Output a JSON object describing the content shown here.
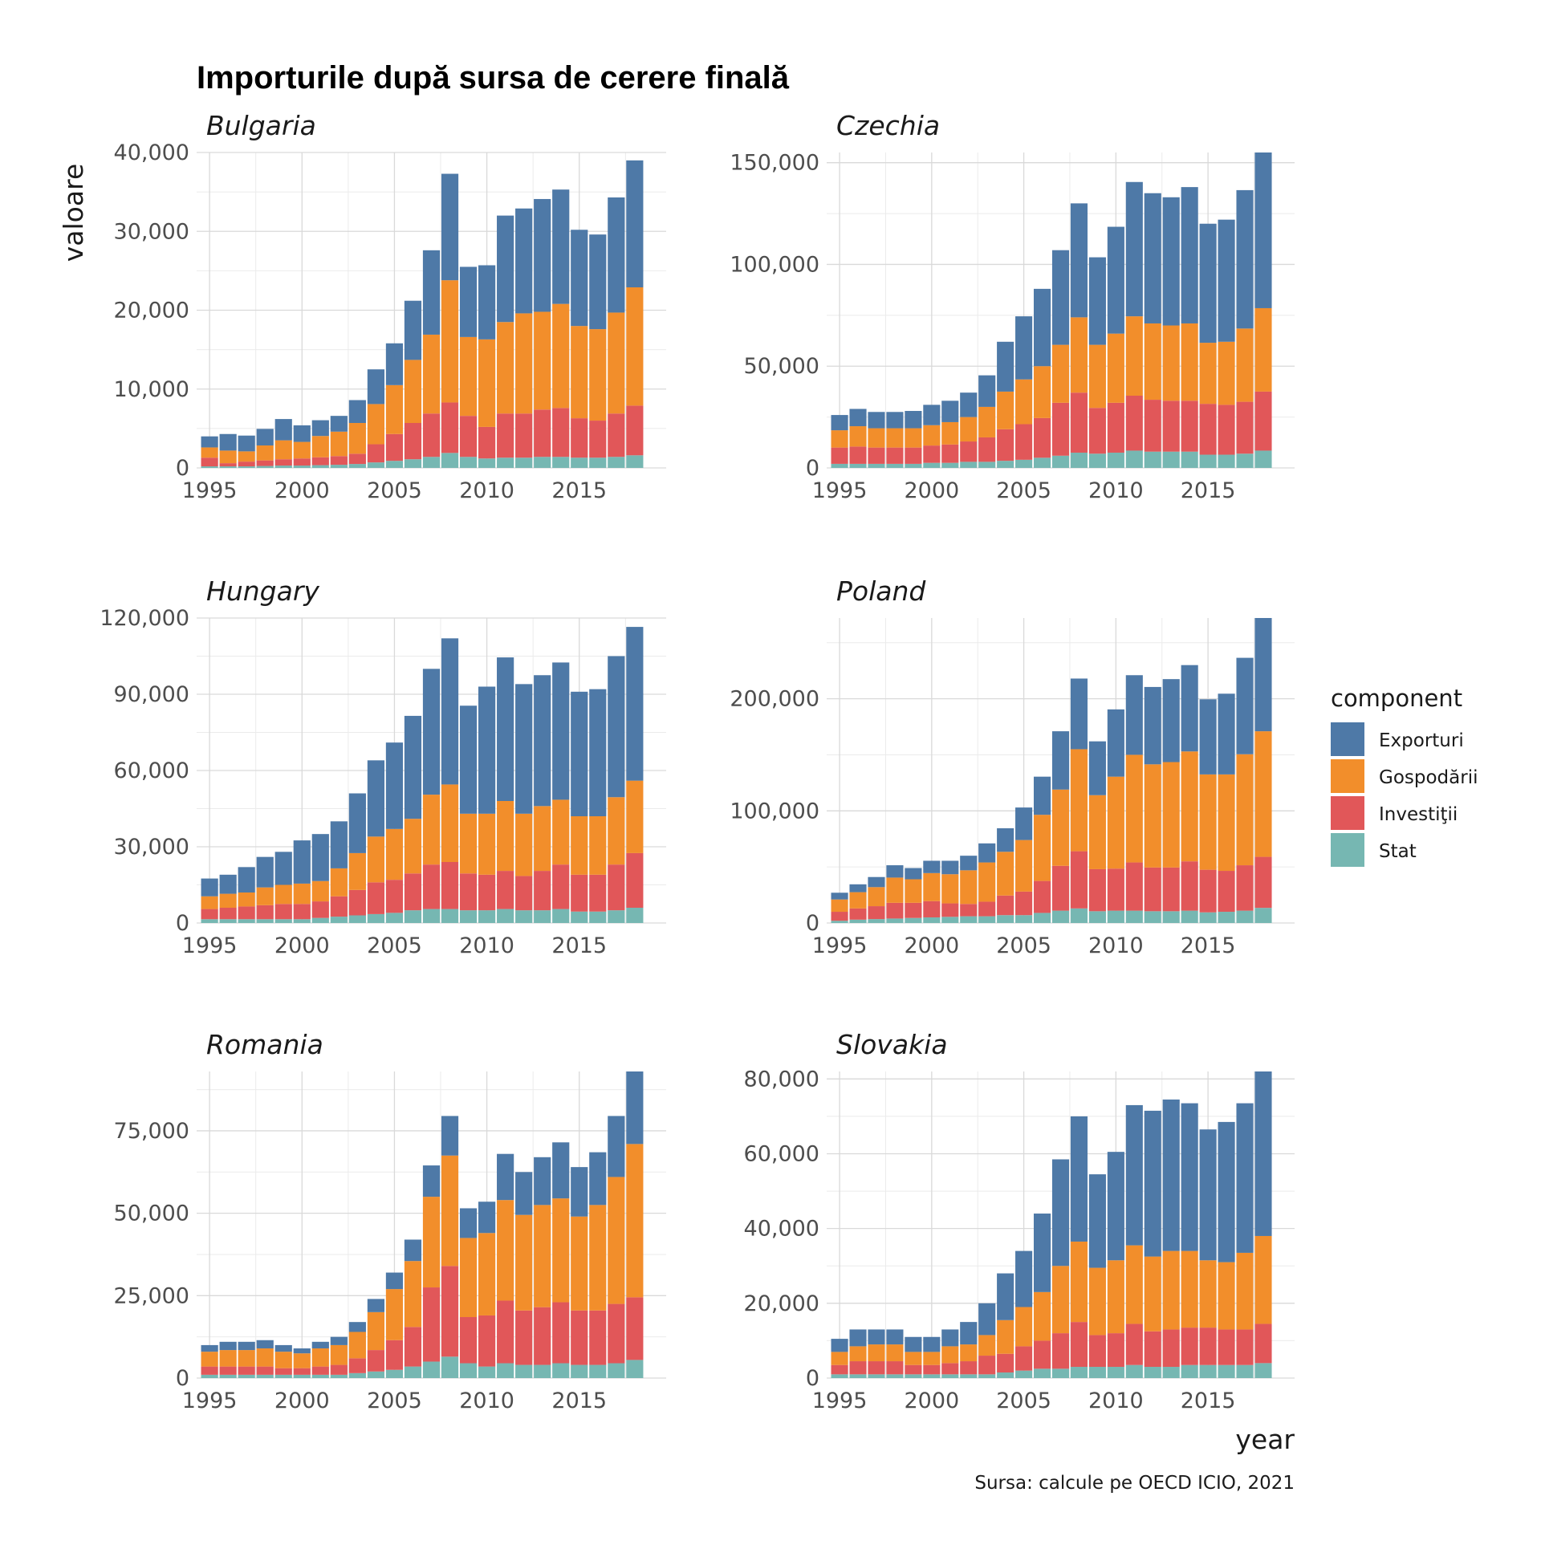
{
  "title": "Importurile după sursa de cerere finală",
  "caption": "Sursa: calcule pe OECD ICIO, 2021",
  "xlabel": "year",
  "ylabel": "valoare",
  "legend": {
    "title": "component",
    "items": [
      {
        "label": "Exporturi",
        "color": "#4E79A7"
      },
      {
        "label": "Gospodării",
        "color": "#F28E2B"
      },
      {
        "label": "Investiţii",
        "color": "#E15759"
      },
      {
        "label": "Stat",
        "color": "#76B7B2"
      }
    ]
  },
  "chart_data": {
    "type": "bar",
    "stacked": true,
    "facet_layout": "3 rows x 2 columns",
    "grid": true,
    "legend_position": "right",
    "x": [
      1995,
      1996,
      1997,
      1998,
      1999,
      2000,
      2001,
      2002,
      2003,
      2004,
      2005,
      2006,
      2007,
      2008,
      2009,
      2010,
      2011,
      2012,
      2013,
      2014,
      2015,
      2016,
      2017,
      2018
    ],
    "x_ticks": [
      "1995",
      "2000",
      "2005",
      "2010",
      "2015"
    ],
    "series_names": [
      "Exporturi",
      "Gospodării",
      "Investiţii",
      "Stat"
    ],
    "panels": [
      {
        "name": "Bulgaria",
        "ylim": [
          0,
          40000
        ],
        "y_ticks": [
          0,
          10000,
          20000,
          30000,
          40000
        ],
        "y_tick_labels": [
          "0",
          "10,000",
          "20,000",
          "30,000",
          "40,000"
        ],
        "series": [
          {
            "name": "Stat",
            "values": [
              200,
              200,
              200,
              250,
              300,
              300,
              350,
              400,
              500,
              700,
              900,
              1100,
              1400,
              1900,
              1400,
              1200,
              1300,
              1300,
              1400,
              1400,
              1300,
              1300,
              1400,
              1600
            ]
          },
          {
            "name": "Investiţii",
            "values": [
              1100,
              400,
              600,
              700,
              800,
              900,
              1000,
              1100,
              1300,
              2300,
              3400,
              4600,
              5500,
              6400,
              5200,
              4000,
              5600,
              5600,
              6000,
              6200,
              5000,
              4700,
              5500,
              6300
            ]
          },
          {
            "name": "Gospodării",
            "values": [
              1300,
              1600,
              1300,
              1900,
              2400,
              2100,
              2700,
              3100,
              3900,
              5100,
              6200,
              8000,
              10000,
              15500,
              10000,
              11100,
              11600,
              12700,
              12400,
              13200,
              11700,
              11600,
              12800,
              15000
            ]
          },
          {
            "name": "Exporturi",
            "values": [
              1400,
              2100,
              2000,
              2100,
              2700,
              2100,
              2000,
              2000,
              2900,
              4400,
              5300,
              7500,
              10700,
              13500,
              8900,
              9400,
              13500,
              13300,
              14300,
              14500,
              12200,
              12000,
              14600,
              16100
            ]
          }
        ]
      },
      {
        "name": "Czechia",
        "ylim": [
          0,
          155000
        ],
        "y_ticks": [
          0,
          50000,
          100000,
          150000
        ],
        "y_tick_labels": [
          "0",
          "50,000",
          "100,000",
          "150,000"
        ],
        "series": [
          {
            "name": "Stat",
            "values": [
              2000,
              2000,
              2000,
              2000,
              2000,
              2500,
              2500,
              3000,
              3000,
              3500,
              4000,
              5000,
              6000,
              7500,
              7000,
              7500,
              8500,
              8000,
              8000,
              8000,
              6500,
              6500,
              7000,
              8500
            ]
          },
          {
            "name": "Investiţii",
            "values": [
              8000,
              8500,
              8000,
              8000,
              8000,
              8500,
              9000,
              10000,
              12000,
              15500,
              17500,
              19500,
              26000,
              29500,
              22500,
              24500,
              27000,
              25500,
              25000,
              25000,
              25000,
              24500,
              25500,
              29000
            ]
          },
          {
            "name": "Gospodării",
            "values": [
              8500,
              10000,
              9500,
              9500,
              9500,
              10000,
              11000,
              12000,
              15000,
              18500,
              22000,
              25500,
              28500,
              37000,
              31000,
              34000,
              39000,
              37500,
              37000,
              38000,
              30000,
              31000,
              36000,
              41000
            ]
          },
          {
            "name": "Exporturi",
            "values": [
              7500,
              8500,
              8000,
              8000,
              8500,
              10000,
              10500,
              12000,
              15500,
              24500,
              31000,
              38000,
              46500,
              56000,
              43000,
              52500,
              66000,
              64000,
              63000,
              67000,
              58500,
              60000,
              68000,
              76500
            ]
          }
        ]
      },
      {
        "name": "Hungary",
        "ylim": [
          0,
          120000
        ],
        "y_ticks": [
          0,
          30000,
          60000,
          90000,
          120000
        ],
        "y_tick_labels": [
          "0",
          "30,000",
          "60,000",
          "90,000",
          "120,000"
        ],
        "series": [
          {
            "name": "Stat",
            "values": [
              1500,
              1500,
              1500,
              1500,
              1500,
              1500,
              2000,
              2500,
              3000,
              3500,
              4000,
              5000,
              5500,
              5500,
              5000,
              5000,
              5500,
              5000,
              5000,
              5500,
              4500,
              4500,
              5000,
              6000
            ]
          },
          {
            "name": "Investiţii",
            "values": [
              4000,
              4500,
              5000,
              5500,
              6000,
              6000,
              6500,
              8000,
              10000,
              12500,
              13000,
              14500,
              17500,
              18500,
              14500,
              14000,
              15000,
              13500,
              15500,
              17500,
              14500,
              14500,
              18000,
              21500
            ]
          },
          {
            "name": "Gospodării",
            "values": [
              5000,
              5500,
              5500,
              7000,
              7500,
              8000,
              8000,
              11000,
              14500,
              18000,
              20000,
              21500,
              27500,
              30500,
              23500,
              24000,
              27500,
              24500,
              25500,
              25500,
              23000,
              23000,
              26500,
              28500
            ]
          },
          {
            "name": "Exporturi",
            "values": [
              7000,
              7500,
              10000,
              12000,
              13000,
              17000,
              18500,
              18500,
              23500,
              30000,
              34000,
              40500,
              49500,
              57500,
              42500,
              50000,
              56500,
              51000,
              51500,
              54000,
              49000,
              50000,
              55500,
              60500
            ]
          }
        ]
      },
      {
        "name": "Poland",
        "ylim": [
          0,
          272000
        ],
        "y_ticks": [
          0,
          100000,
          200000
        ],
        "y_tick_labels": [
          "0",
          "100,000",
          "200,000"
        ],
        "series": [
          {
            "name": "Stat",
            "values": [
              2000,
              3000,
              3500,
              4000,
              4500,
              5000,
              5500,
              6000,
              6000,
              7000,
              7000,
              9000,
              11000,
              13000,
              10500,
              11000,
              11000,
              10500,
              10500,
              11000,
              9500,
              10000,
              11000,
              13500
            ]
          },
          {
            "name": "Investiţii",
            "values": [
              8000,
              10000,
              11500,
              14000,
              13500,
              14500,
              12000,
              11000,
              13000,
              17500,
              21000,
              28500,
              40000,
              51000,
              37500,
              37500,
              43000,
              39000,
              39000,
              44000,
              38000,
              36500,
              40500,
              45500
            ]
          },
          {
            "name": "Gospodării",
            "values": [
              11000,
              14500,
              17000,
              22500,
              21000,
              25000,
              26000,
              30000,
              35000,
              39000,
              46000,
              59000,
              68000,
              91000,
              66000,
              82000,
              96000,
              92000,
              94000,
              98000,
              85000,
              86000,
              99000,
              112000
            ]
          },
          {
            "name": "Exporturi",
            "values": [
              6000,
              7000,
              9000,
              11000,
              10000,
              11000,
              12000,
              13000,
              17000,
              21000,
              29000,
              34000,
              52000,
              63000,
              48000,
              60000,
              71000,
              69000,
              74000,
              77000,
              67000,
              72000,
              86000,
              101000
            ]
          }
        ]
      },
      {
        "name": "Romania",
        "ylim": [
          0,
          93000
        ],
        "y_ticks": [
          0,
          25000,
          50000,
          75000
        ],
        "y_tick_labels": [
          "0",
          "25,000",
          "50,000",
          "75,000"
        ],
        "series": [
          {
            "name": "Stat",
            "values": [
              1000,
              1000,
              1000,
              1000,
              1000,
              1000,
              1000,
              1000,
              1500,
              2000,
              2500,
              3500,
              5000,
              6500,
              4500,
              3500,
              4500,
              4000,
              4000,
              4500,
              4000,
              4000,
              4500,
              5500
            ]
          },
          {
            "name": "Investiţii",
            "values": [
              2500,
              2500,
              2500,
              2500,
              2000,
              2000,
              2500,
              3000,
              4500,
              6500,
              9000,
              12000,
              22500,
              27500,
              14000,
              15500,
              19000,
              16500,
              17500,
              18500,
              16500,
              16500,
              18000,
              19000
            ]
          },
          {
            "name": "Gospodării",
            "values": [
              4500,
              5000,
              5000,
              5500,
              5000,
              4500,
              5500,
              6000,
              8000,
              11500,
              15500,
              20000,
              27500,
              33500,
              24000,
              25000,
              30500,
              29000,
              31000,
              31500,
              28500,
              32000,
              38500,
              46500
            ]
          },
          {
            "name": "Exporturi",
            "values": [
              2000,
              2500,
              2500,
              2500,
              2000,
              1500,
              2000,
              2500,
              3000,
              4000,
              5000,
              6500,
              9500,
              12000,
              9000,
              9500,
              14000,
              13000,
              14500,
              17000,
              15000,
              16000,
              18500,
              22000
            ]
          }
        ]
      },
      {
        "name": "Slovakia",
        "ylim": [
          0,
          82000
        ],
        "y_ticks": [
          0,
          20000,
          40000,
          60000,
          80000
        ],
        "y_tick_labels": [
          "0",
          "20,000",
          "40,000",
          "60,000",
          "80,000"
        ],
        "series": [
          {
            "name": "Stat",
            "values": [
              1000,
              1000,
              1000,
              1000,
              1000,
              1000,
              1000,
              1000,
              1000,
              1500,
              2000,
              2500,
              2500,
              3000,
              3000,
              3000,
              3500,
              3000,
              3000,
              3500,
              3500,
              3500,
              3500,
              4000
            ]
          },
          {
            "name": "Investiţii",
            "values": [
              2500,
              3500,
              3500,
              3500,
              2500,
              2500,
              3000,
              3500,
              5000,
              5000,
              6500,
              7500,
              9500,
              12000,
              8500,
              9000,
              11000,
              9500,
              10000,
              10000,
              10000,
              9500,
              9500,
              10500
            ]
          },
          {
            "name": "Gospodării",
            "values": [
              3500,
              4000,
              4500,
              4500,
              3500,
              3500,
              4500,
              4500,
              5500,
              9000,
              10500,
              13000,
              18000,
              21500,
              18000,
              19500,
              21000,
              20000,
              21000,
              20500,
              18000,
              18000,
              20500,
              23500
            ]
          },
          {
            "name": "Exporturi",
            "values": [
              3500,
              4500,
              4000,
              4000,
              4000,
              4000,
              4500,
              6000,
              8500,
              12500,
              15000,
              21000,
              28500,
              33500,
              25000,
              29000,
              37500,
              39000,
              40500,
              39500,
              35000,
              37500,
              40000,
              44000
            ]
          }
        ]
      }
    ]
  }
}
